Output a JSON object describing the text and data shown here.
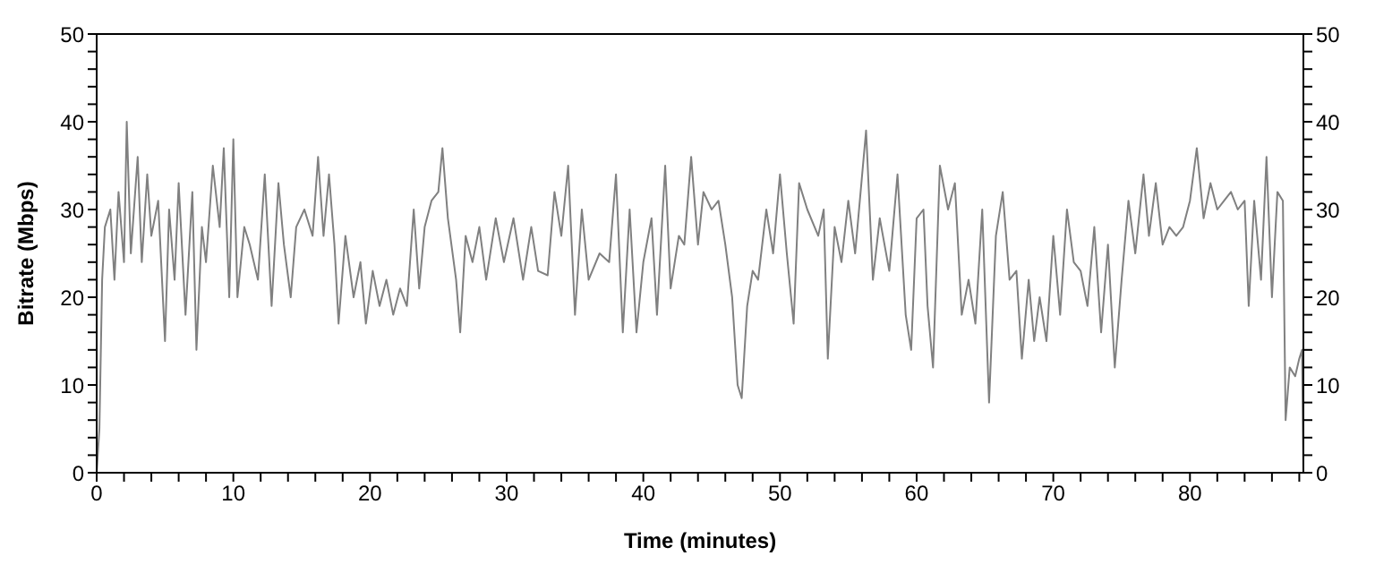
{
  "chart_data": {
    "type": "line",
    "xlabel": "Time (minutes)",
    "ylabel": "Bitrate (Mbps)",
    "xlim": [
      0,
      88.3
    ],
    "ylim": [
      0,
      50
    ],
    "y2lim": [
      0,
      50
    ],
    "xticks": [
      0,
      {
        "value": 2,
        "label": null
      },
      {
        "value": 4,
        "label": null
      },
      {
        "value": 6,
        "label": null
      },
      {
        "value": 8,
        "label": null
      },
      10,
      {
        "value": 12,
        "label": null
      },
      {
        "value": 14,
        "label": null
      },
      {
        "value": 16,
        "label": null
      },
      {
        "value": 18,
        "label": null
      },
      20,
      {
        "value": 22,
        "label": null
      },
      {
        "value": 24,
        "label": null
      },
      {
        "value": 26,
        "label": null
      },
      {
        "value": 28,
        "label": null
      },
      30,
      {
        "value": 32,
        "label": null
      },
      {
        "value": 34,
        "label": null
      },
      {
        "value": 36,
        "label": null
      },
      {
        "value": 38,
        "label": null
      },
      40,
      {
        "value": 42,
        "label": null
      },
      {
        "value": 44,
        "label": null
      },
      {
        "value": 46,
        "label": null
      },
      {
        "value": 48,
        "label": null
      },
      50,
      {
        "value": 52,
        "label": null
      },
      {
        "value": 54,
        "label": null
      },
      {
        "value": 56,
        "label": null
      },
      {
        "value": 58,
        "label": null
      },
      60,
      {
        "value": 62,
        "label": null
      },
      {
        "value": 64,
        "label": null
      },
      {
        "value": 66,
        "label": null
      },
      {
        "value": 68,
        "label": null
      },
      70,
      {
        "value": 72,
        "label": null
      },
      {
        "value": 74,
        "label": null
      },
      {
        "value": 76,
        "label": null
      },
      {
        "value": 78,
        "label": null
      },
      80,
      {
        "value": 82,
        "label": null
      },
      {
        "value": 84,
        "label": null
      },
      {
        "value": 86,
        "label": null
      },
      {
        "value": 88,
        "label": null
      }
    ],
    "yticks": [
      0,
      {
        "value": 2,
        "label": null
      },
      {
        "value": 4,
        "label": null
      },
      {
        "value": 6,
        "label": null
      },
      {
        "value": 8,
        "label": null
      },
      10,
      {
        "value": 12,
        "label": null
      },
      {
        "value": 14,
        "label": null
      },
      {
        "value": 16,
        "label": null
      },
      {
        "value": 18,
        "label": null
      },
      20,
      {
        "value": 22,
        "label": null
      },
      {
        "value": 24,
        "label": null
      },
      {
        "value": 26,
        "label": null
      },
      {
        "value": 28,
        "label": null
      },
      30,
      {
        "value": 32,
        "label": null
      },
      {
        "value": 34,
        "label": null
      },
      {
        "value": 36,
        "label": null
      },
      {
        "value": 38,
        "label": null
      },
      40,
      {
        "value": 42,
        "label": null
      },
      {
        "value": 44,
        "label": null
      },
      {
        "value": 46,
        "label": null
      },
      {
        "value": 48,
        "label": null
      },
      50
    ],
    "y2ticks": [
      0,
      {
        "value": 2,
        "label": null
      },
      {
        "value": 4,
        "label": null
      },
      {
        "value": 6,
        "label": null
      },
      {
        "value": 8,
        "label": null
      },
      10,
      {
        "value": 12,
        "label": null
      },
      {
        "value": 14,
        "label": null
      },
      {
        "value": 16,
        "label": null
      },
      {
        "value": 18,
        "label": null
      },
      20,
      {
        "value": 22,
        "label": null
      },
      {
        "value": 24,
        "label": null
      },
      {
        "value": 26,
        "label": null
      },
      {
        "value": 28,
        "label": null
      },
      30,
      {
        "value": 32,
        "label": null
      },
      {
        "value": 34,
        "label": null
      },
      {
        "value": 36,
        "label": null
      },
      {
        "value": 38,
        "label": null
      },
      40,
      {
        "value": 42,
        "label": null
      },
      {
        "value": 44,
        "label": null
      },
      {
        "value": 46,
        "label": null
      },
      {
        "value": 48,
        "label": null
      },
      50
    ],
    "marker": "none",
    "line_style": "solid",
    "x": [
      0,
      0.2,
      0.4,
      0.6,
      1,
      1.3,
      1.6,
      2,
      2.2,
      2.5,
      3,
      3.3,
      3.7,
      4,
      4.5,
      5,
      5.3,
      5.7,
      6,
      6.5,
      7,
      7.3,
      7.7,
      8,
      8.5,
      9,
      9.3,
      9.7,
      10,
      10.3,
      10.8,
      11.2,
      11.8,
      12.3,
      12.8,
      13.3,
      13.7,
      14.2,
      14.6,
      15.2,
      15.8,
      16.2,
      16.6,
      17,
      17.4,
      17.7,
      18.2,
      18.8,
      19.3,
      19.7,
      20.2,
      20.7,
      21.2,
      21.7,
      22.2,
      22.7,
      23.2,
      23.6,
      24,
      24.5,
      25,
      25.3,
      25.7,
      26.3,
      26.6,
      27,
      27.5,
      28,
      28.5,
      29.2,
      29.8,
      30.5,
      31.2,
      31.8,
      32.3,
      33,
      33.5,
      34,
      34.5,
      35,
      35.5,
      36,
      36.8,
      37.5,
      38,
      38.5,
      39,
      39.5,
      40,
      40.6,
      41,
      41.6,
      42,
      42.6,
      43,
      43.5,
      44,
      44.4,
      45,
      45.5,
      46,
      46.5,
      46.9,
      47.2,
      47.6,
      48,
      48.4,
      49,
      49.5,
      50,
      50.5,
      51,
      51.4,
      52,
      52.8,
      53.2,
      53.5,
      54,
      54.5,
      55,
      55.5,
      56.3,
      56.8,
      57.3,
      58,
      58.6,
      59.2,
      59.6,
      60,
      60.5,
      60.8,
      61.2,
      61.7,
      62.3,
      62.8,
      63.3,
      63.8,
      64.3,
      64.8,
      65.3,
      65.8,
      66.3,
      66.8,
      67.3,
      67.7,
      68.2,
      68.6,
      69,
      69.5,
      70,
      70.5,
      71,
      71.5,
      72,
      72.5,
      73,
      73.5,
      74,
      74.5,
      75,
      75.5,
      76,
      76.6,
      77,
      77.5,
      78,
      78.5,
      79,
      79.5,
      80,
      80.5,
      81,
      81.5,
      82,
      82.5,
      83,
      83.5,
      84,
      84.3,
      84.7,
      85.2,
      85.6,
      86,
      86.4,
      86.8,
      87,
      87.3,
      87.7,
      88,
      88.2,
      88.3
    ],
    "series": [
      {
        "color": "#808080",
        "values": [
          0,
          5,
          22,
          28,
          30,
          22,
          32,
          24,
          40,
          25,
          36,
          24,
          34,
          27,
          31,
          15,
          30,
          22,
          33,
          18,
          32,
          14,
          28,
          24,
          35,
          28,
          37,
          20,
          38,
          20,
          28,
          26,
          22,
          34,
          19,
          33,
          26,
          20,
          28,
          30,
          27,
          36,
          27,
          34,
          26,
          17,
          27,
          20,
          24,
          17,
          23,
          19,
          22,
          18,
          21,
          19,
          30,
          21,
          28,
          31,
          32,
          37,
          29,
          22,
          16,
          27,
          24,
          28,
          22,
          29,
          24,
          29,
          22,
          28,
          23,
          22.5,
          32,
          27,
          35,
          18,
          30,
          22,
          25,
          24,
          34,
          16,
          30,
          16,
          24,
          29,
          18,
          35,
          21,
          27,
          26,
          36,
          26,
          32,
          30,
          31,
          26,
          20,
          10,
          8.5,
          19,
          23,
          22,
          30,
          25,
          34,
          25,
          17,
          33,
          30,
          27,
          30,
          13,
          28,
          24,
          31,
          25,
          39,
          22,
          29,
          23,
          34,
          18,
          14,
          29,
          30,
          19,
          12,
          35,
          30,
          33,
          18,
          22,
          17,
          30,
          8,
          27,
          32,
          22,
          23,
          13,
          22,
          15,
          20,
          15,
          27,
          18,
          30,
          24,
          23,
          19,
          28,
          16,
          26,
          12,
          22,
          31,
          25,
          34,
          27,
          33,
          26,
          28,
          27,
          28,
          31,
          37,
          29,
          33,
          30,
          31,
          32,
          30,
          31,
          19,
          31,
          22,
          36,
          20,
          32,
          31,
          6,
          12,
          11,
          13,
          14,
          0
        ]
      }
    ]
  }
}
